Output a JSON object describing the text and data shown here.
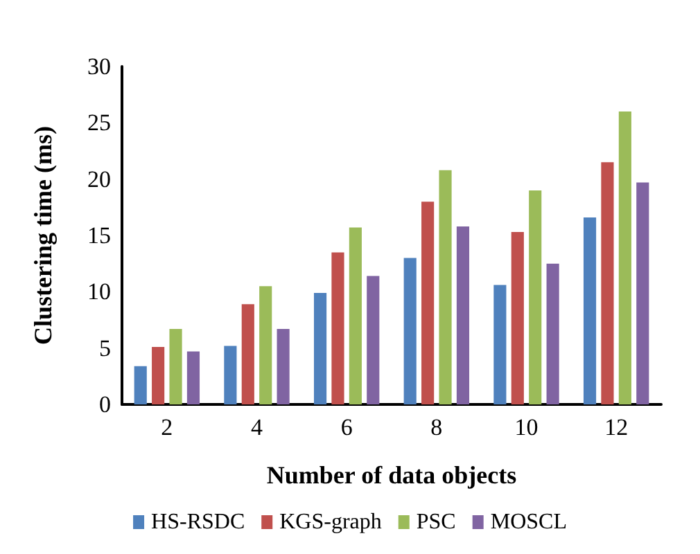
{
  "chart_data": {
    "type": "bar",
    "xlabel": "Number of data objects",
    "ylabel": "Clustering time (ms)",
    "categories": [
      "2",
      "4",
      "6",
      "8",
      "10",
      "12"
    ],
    "series": [
      {
        "name": "HS-RSDC",
        "color": "#4f81bd",
        "values": [
          3.4,
          5.2,
          9.9,
          13,
          10.6,
          16.6
        ]
      },
      {
        "name": "KGS-graph",
        "color": "#c0504d",
        "values": [
          5.1,
          8.9,
          13.5,
          18,
          15.3,
          21.5
        ]
      },
      {
        "name": "PSC",
        "color": "#9bbb59",
        "values": [
          6.7,
          10.5,
          15.7,
          20.8,
          19,
          26
        ]
      },
      {
        "name": "MOSCL",
        "color": "#8064a2",
        "values": [
          4.7,
          6.7,
          11.4,
          15.8,
          12.5,
          19.7
        ]
      }
    ],
    "ylim": [
      0,
      30
    ],
    "yticks": [
      0,
      5,
      10,
      15,
      20,
      25,
      30
    ],
    "grid": false,
    "legend": "bottom"
  }
}
